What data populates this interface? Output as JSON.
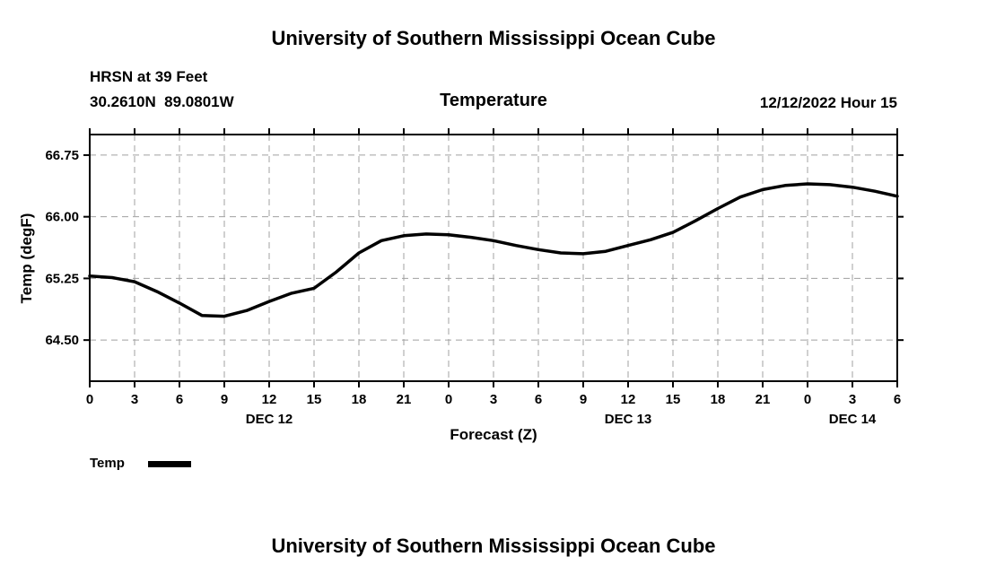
{
  "page": {
    "title_top": "University of Southern Mississippi Ocean Cube",
    "title_bottom": "University of Southern Mississippi Ocean Cube"
  },
  "header": {
    "station": "HRSN at 39 Feet",
    "coordinates": "30.2610N  89.0801W",
    "plot_title": "Temperature",
    "run_time": "12/12/2022 Hour 15"
  },
  "legend": {
    "label": "Temp",
    "position": "bottom-left"
  },
  "chart_data": {
    "type": "line",
    "title": "Temperature",
    "xlabel": "Forecast (Z)",
    "ylabel": "Temp (degF)",
    "xlim": [
      0,
      54
    ],
    "ylim": [
      64.0,
      67.0
    ],
    "grid": true,
    "grid_style": "dashed",
    "grid_color": "#a0a0a0",
    "line_color": "#000000",
    "x_tick_hours": [
      0,
      3,
      6,
      9,
      12,
      15,
      18,
      21,
      24,
      27,
      30,
      33,
      36,
      39,
      42,
      45,
      48,
      51,
      54
    ],
    "x_tick_labels": [
      "0",
      "3",
      "6",
      "9",
      "12",
      "15",
      "18",
      "21",
      "0",
      "3",
      "6",
      "9",
      "12",
      "15",
      "18",
      "21",
      "0",
      "3",
      "6"
    ],
    "date_labels": [
      {
        "label": "DEC 12",
        "hour": 12
      },
      {
        "label": "DEC 13",
        "hour": 36
      },
      {
        "label": "DEC 14",
        "hour": 51
      }
    ],
    "y_ticks": [
      64.5,
      65.25,
      66.0,
      66.75
    ],
    "y_tick_labels": [
      "64.50",
      "65.25",
      "66.00",
      "66.75"
    ],
    "series": [
      {
        "name": "Temp",
        "x": [
          0,
          1.5,
          3,
          4.5,
          6,
          7.5,
          9,
          10.5,
          12,
          13.5,
          15,
          16.5,
          18,
          19.5,
          21,
          22.5,
          24,
          25.5,
          27,
          28.5,
          30,
          31.5,
          33,
          34.5,
          36,
          37.5,
          39,
          40.5,
          42,
          43.5,
          45,
          46.5,
          48,
          49.5,
          51,
          52.5,
          54
        ],
        "y": [
          65.28,
          65.26,
          65.21,
          65.09,
          64.95,
          64.8,
          64.79,
          64.86,
          64.97,
          65.07,
          65.13,
          65.33,
          65.56,
          65.71,
          65.77,
          65.79,
          65.78,
          65.75,
          65.71,
          65.65,
          65.6,
          65.56,
          65.55,
          65.58,
          65.65,
          65.72,
          65.81,
          65.95,
          66.1,
          66.24,
          66.33,
          66.38,
          66.4,
          66.39,
          66.36,
          66.31,
          66.25
        ]
      }
    ]
  }
}
